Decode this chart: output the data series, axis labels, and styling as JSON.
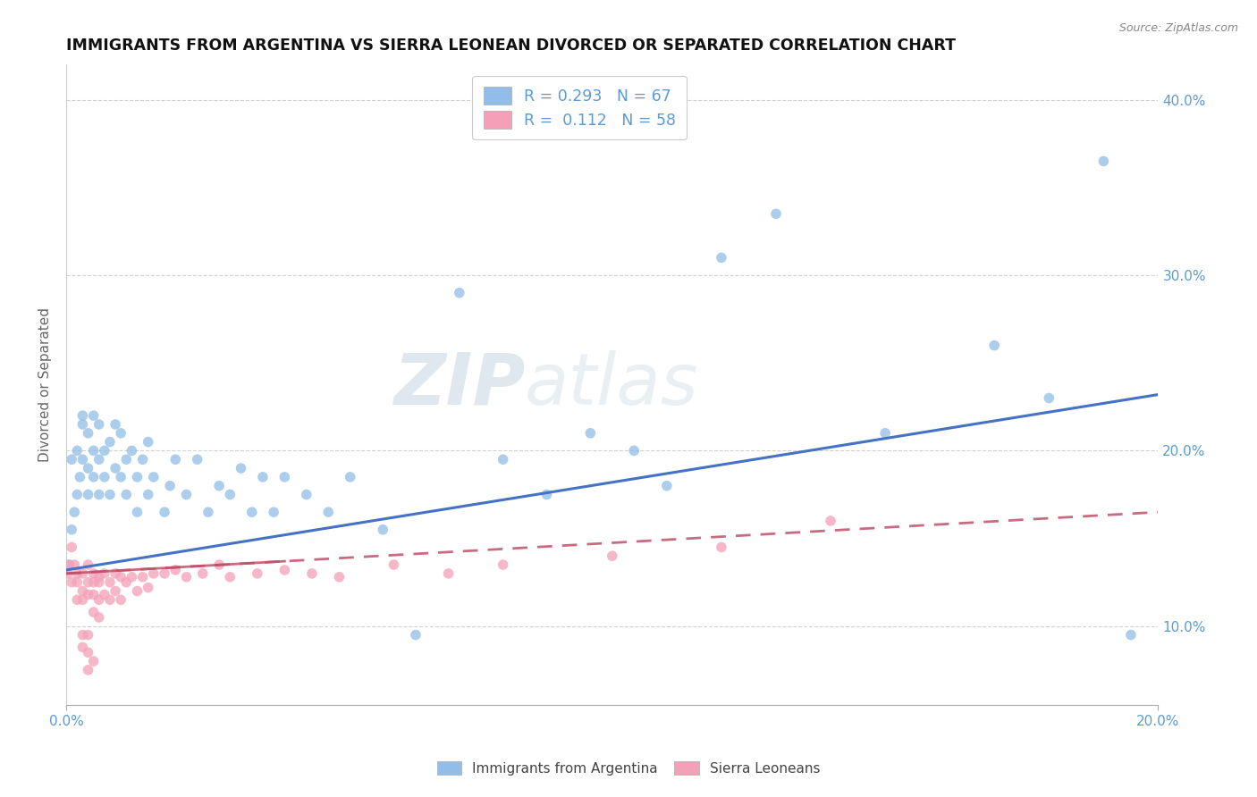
{
  "title": "IMMIGRANTS FROM ARGENTINA VS SIERRA LEONEAN DIVORCED OR SEPARATED CORRELATION CHART",
  "source": "Source: ZipAtlas.com",
  "ylabel": "Divorced or Separated",
  "xlim": [
    0.0,
    0.2
  ],
  "ylim": [
    0.055,
    0.42
  ],
  "xticks": [
    0.0,
    0.2
  ],
  "yticks": [
    0.1,
    0.2,
    0.3,
    0.4
  ],
  "ytick_labels": [
    "10.0%",
    "20.0%",
    "30.0%",
    "40.0%"
  ],
  "xtick_labels": [
    "0.0%",
    "20.0%"
  ],
  "legend_labels": [
    "Immigrants from Argentina",
    "Sierra Leoneans"
  ],
  "R_argentina": 0.293,
  "N_argentina": 67,
  "R_sierra": 0.112,
  "N_sierra": 58,
  "color_argentina": "#92BDE8",
  "color_sierra": "#F4A0B8",
  "line_color_argentina": "#4472C4",
  "line_color_sierra": "#C0506A",
  "watermark_zip": "ZIP",
  "watermark_atlas": "atlas",
  "argentina_line_y0": 0.132,
  "argentina_line_y1": 0.232,
  "sierra_line_y0": 0.13,
  "sierra_line_y1": 0.165,
  "argentina_scatter_x": [
    0.0005,
    0.001,
    0.001,
    0.0015,
    0.002,
    0.002,
    0.0025,
    0.003,
    0.003,
    0.003,
    0.004,
    0.004,
    0.004,
    0.005,
    0.005,
    0.005,
    0.006,
    0.006,
    0.006,
    0.007,
    0.007,
    0.008,
    0.008,
    0.009,
    0.009,
    0.01,
    0.01,
    0.011,
    0.011,
    0.012,
    0.013,
    0.013,
    0.014,
    0.015,
    0.015,
    0.016,
    0.018,
    0.019,
    0.02,
    0.022,
    0.024,
    0.026,
    0.028,
    0.03,
    0.032,
    0.034,
    0.036,
    0.038,
    0.04,
    0.044,
    0.048,
    0.052,
    0.058,
    0.064,
    0.072,
    0.08,
    0.088,
    0.096,
    0.104,
    0.11,
    0.12,
    0.13,
    0.15,
    0.17,
    0.18,
    0.19,
    0.195
  ],
  "argentina_scatter_y": [
    0.135,
    0.155,
    0.195,
    0.165,
    0.175,
    0.2,
    0.185,
    0.215,
    0.195,
    0.22,
    0.19,
    0.21,
    0.175,
    0.2,
    0.185,
    0.22,
    0.195,
    0.215,
    0.175,
    0.2,
    0.185,
    0.205,
    0.175,
    0.215,
    0.19,
    0.185,
    0.21,
    0.195,
    0.175,
    0.2,
    0.185,
    0.165,
    0.195,
    0.175,
    0.205,
    0.185,
    0.165,
    0.18,
    0.195,
    0.175,
    0.195,
    0.165,
    0.18,
    0.175,
    0.19,
    0.165,
    0.185,
    0.165,
    0.185,
    0.175,
    0.165,
    0.185,
    0.155,
    0.095,
    0.29,
    0.195,
    0.175,
    0.21,
    0.2,
    0.18,
    0.31,
    0.335,
    0.21,
    0.26,
    0.23,
    0.365,
    0.095
  ],
  "sierra_scatter_x": [
    0.0003,
    0.0005,
    0.001,
    0.001,
    0.0015,
    0.002,
    0.002,
    0.002,
    0.003,
    0.003,
    0.003,
    0.004,
    0.004,
    0.004,
    0.005,
    0.005,
    0.005,
    0.006,
    0.006,
    0.006,
    0.007,
    0.007,
    0.008,
    0.008,
    0.009,
    0.009,
    0.01,
    0.01,
    0.011,
    0.012,
    0.013,
    0.014,
    0.015,
    0.016,
    0.018,
    0.02,
    0.022,
    0.025,
    0.028,
    0.03,
    0.035,
    0.04,
    0.045,
    0.05,
    0.06,
    0.07,
    0.08,
    0.1,
    0.12,
    0.14,
    0.003,
    0.004,
    0.005,
    0.006,
    0.004,
    0.005,
    0.003,
    0.004
  ],
  "sierra_scatter_y": [
    0.13,
    0.135,
    0.125,
    0.145,
    0.135,
    0.13,
    0.115,
    0.125,
    0.13,
    0.12,
    0.115,
    0.125,
    0.135,
    0.118,
    0.13,
    0.118,
    0.125,
    0.128,
    0.115,
    0.125,
    0.13,
    0.118,
    0.125,
    0.115,
    0.13,
    0.12,
    0.128,
    0.115,
    0.125,
    0.128,
    0.12,
    0.128,
    0.122,
    0.13,
    0.13,
    0.132,
    0.128,
    0.13,
    0.135,
    0.128,
    0.13,
    0.132,
    0.13,
    0.128,
    0.135,
    0.13,
    0.135,
    0.14,
    0.145,
    0.16,
    0.095,
    0.085,
    0.108,
    0.105,
    0.075,
    0.08,
    0.088,
    0.095
  ]
}
